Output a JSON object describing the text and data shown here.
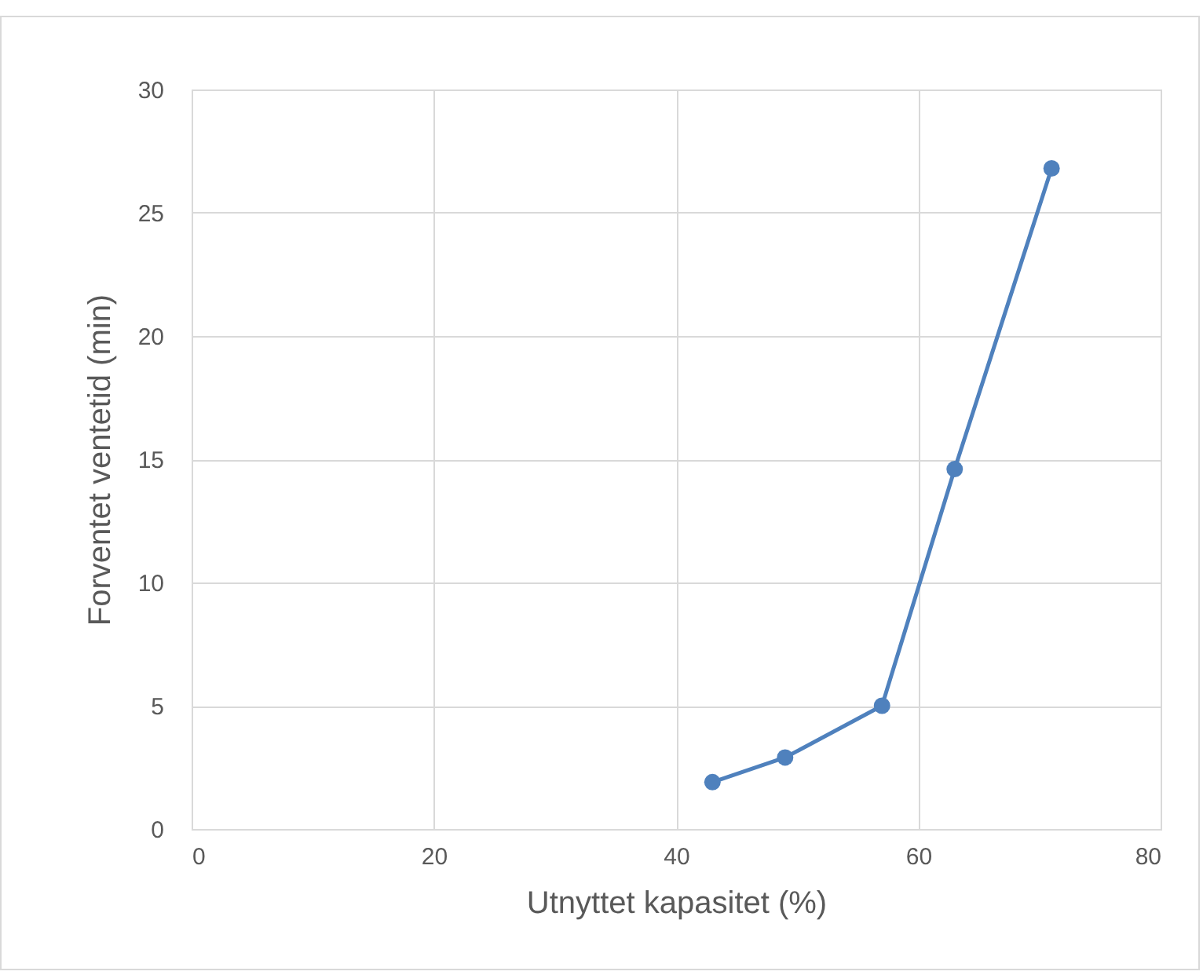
{
  "chart_data": {
    "type": "line",
    "xlabel": "Utnyttet kapasitet (%)",
    "ylabel": "Forventet ventetid (min)",
    "x": [
      43,
      49,
      57,
      63,
      71
    ],
    "series": [
      {
        "color": "#4f81bd",
        "values": [
          1.9,
          2.9,
          5,
          14.6,
          26.8
        ]
      }
    ],
    "xlim": [
      0,
      80
    ],
    "xticks": [
      0,
      20,
      40,
      60,
      80
    ],
    "ylim": [
      0,
      30
    ],
    "yticks": [
      0,
      5,
      10,
      15,
      20,
      25,
      30
    ],
    "grid": true,
    "marker": "circle",
    "line_style": "solid"
  }
}
